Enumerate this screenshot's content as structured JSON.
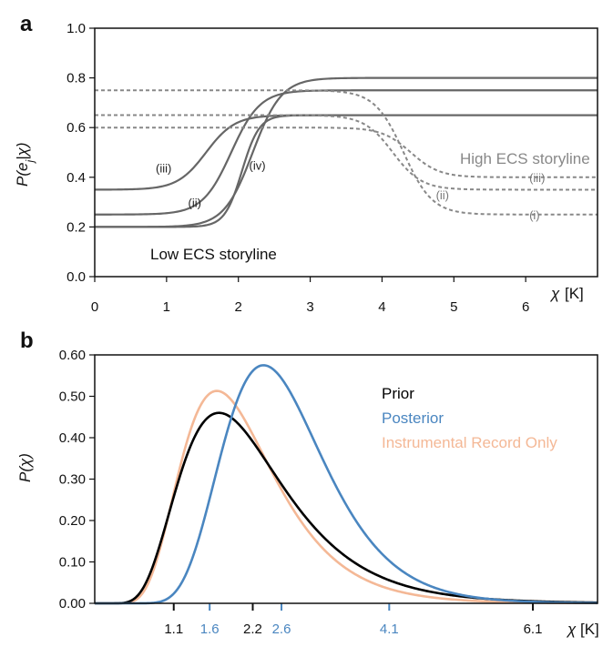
{
  "chart_data": [
    {
      "panel": "a",
      "type": "line",
      "xlabel": "χ",
      "xunit": "[K]",
      "ylabel": "P(e",
      "ylabel_sub": "j",
      "ylabel_end": "|χ)",
      "xlim": [
        0,
        7
      ],
      "ylim": [
        0,
        1.0
      ],
      "xticks": [
        0,
        1,
        2,
        3,
        4,
        5,
        6
      ],
      "xtick_labels": [
        "0",
        "1",
        "2",
        "3",
        "4",
        "5",
        "6"
      ],
      "yticks": [
        0,
        0.2,
        0.4,
        0.6,
        0.8,
        1.0
      ],
      "ytick_labels": [
        "0.0",
        "0.2",
        "0.4",
        "0.6",
        "0.8",
        "1.0"
      ],
      "annotations": {
        "low": "Low ECS storyline",
        "high": "High ECS storyline"
      },
      "low_ecs": [
        {
          "label": "(i)",
          "low": 0.2,
          "high": 0.8,
          "mid": 2.2,
          "width": 0.2
        },
        {
          "label": "(ii)",
          "low": 0.25,
          "high": 0.75,
          "mid": 1.9,
          "width": 0.2
        },
        {
          "label": "(iii)",
          "low": 0.35,
          "high": 0.65,
          "mid": 1.55,
          "width": 0.2
        },
        {
          "label": "(iv)",
          "low": 0.2,
          "high": 0.65,
          "mid": 2.05,
          "width": 0.12
        }
      ],
      "low_ecs_labels": [
        {
          "text": "(iii)",
          "x": 0.85,
          "y": 0.42
        },
        {
          "text": "(ii)",
          "x": 1.3,
          "y": 0.28
        },
        {
          "text": "(iv)",
          "x": 2.15,
          "y": 0.43
        }
      ],
      "high_ecs": [
        {
          "label": "(i)",
          "left": 0.75,
          "right": 0.25,
          "mid": 4.3,
          "width": 0.2
        },
        {
          "label": "(ii)",
          "left": 0.65,
          "right": 0.35,
          "mid": 4.15,
          "width": 0.2
        },
        {
          "label": "(iii)",
          "left": 0.6,
          "right": 0.4,
          "mid": 4.4,
          "width": 0.2
        }
      ],
      "high_ecs_labels": [
        {
          "text": "(iii)",
          "x": 6.05,
          "y": 0.4
        },
        {
          "text": "(ii)",
          "x": 4.75,
          "y": 0.33
        },
        {
          "text": "(i)",
          "x": 6.05,
          "y": 0.25
        }
      ],
      "colors": {
        "low": "#666666",
        "high": "#888888",
        "label": "#222222"
      }
    },
    {
      "panel": "b",
      "type": "line",
      "xlabel": "χ",
      "xunit": "[K]",
      "ylabel": "P(χ)",
      "xlim": [
        0,
        7
      ],
      "ylim": [
        0,
        0.6
      ],
      "xticks": [
        1.1,
        1.6,
        2.2,
        2.6,
        4.1,
        6.1
      ],
      "xtick_labels": [
        "1.1",
        "1.6",
        "2.2",
        "2.6",
        "4.1",
        "6.1"
      ],
      "xtick_colors": [
        "#111111",
        "#4a86c0",
        "#111111",
        "#4a86c0",
        "#4a86c0",
        "#111111"
      ],
      "yticks": [
        0,
        0.1,
        0.2,
        0.3,
        0.4,
        0.5,
        0.6
      ],
      "ytick_labels": [
        "0.00",
        "0.10",
        "0.20",
        "0.30",
        "0.40",
        "0.50",
        "0.60"
      ],
      "series": [
        {
          "name": "Prior",
          "color": "#000000",
          "peak_x": 1.73,
          "peak_y": 0.46,
          "sigma": 0.42
        },
        {
          "name": "Posterior",
          "color": "#4a86c0",
          "peak_x": 2.35,
          "peak_y": 0.575,
          "sigma": 0.3
        },
        {
          "name": "Instrumental Record Only",
          "color": "#f4b896",
          "peak_x": 1.7,
          "peak_y": 0.513,
          "sigma": 0.38
        }
      ]
    }
  ]
}
